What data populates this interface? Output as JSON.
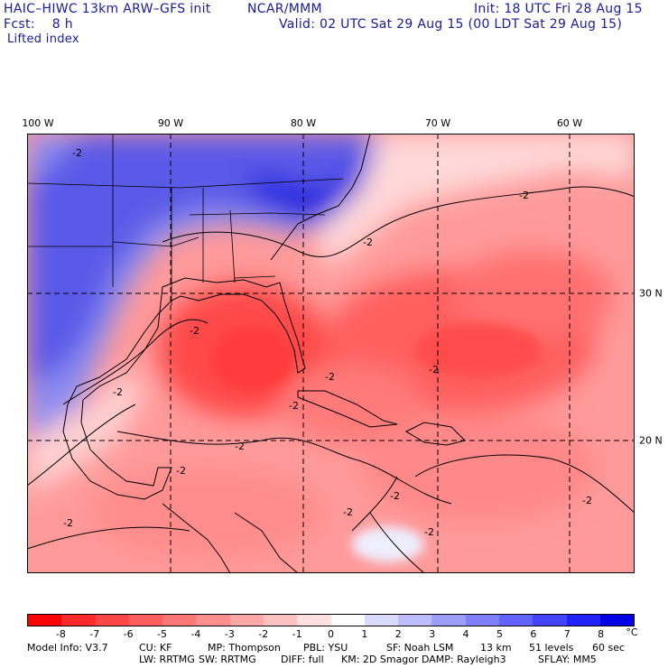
{
  "header": {
    "model": "HAIC–HIWC 13km ARW–GFS init",
    "org": "NCAR/MMM",
    "init": "Init: 18 UTC Fri 28 Aug 15",
    "fcst": "Fcst:    8 h",
    "valid": "Valid: 02 UTC Sat 29 Aug 15 (00 LDT Sat 29 Aug 15)",
    "field": "Lifted index"
  },
  "map": {
    "lon_labels": [
      "100 W",
      "90 W",
      "80 W",
      "70 W",
      "60 W"
    ],
    "lat_labels": [
      "30 N",
      "20 N"
    ],
    "contour_labels": [
      "-2",
      "-2",
      "-2",
      "-2",
      "-2",
      "-2",
      "-2",
      "-2",
      "-2",
      "-2",
      "-2",
      "-2",
      "-2",
      "-2",
      "-2"
    ]
  },
  "scale": {
    "ticks": [
      "-8",
      "-7",
      "-6",
      "-5",
      "-4",
      "-3",
      "-2",
      "-1",
      "0",
      "1",
      "2",
      "3",
      "4",
      "5",
      "6",
      "7",
      "8"
    ],
    "unit": "°C",
    "colors": [
      "#ff0000",
      "#ff2a2a",
      "#ff4646",
      "#ff5e5e",
      "#ff7777",
      "#ff8f8f",
      "#ffa8a8",
      "#ffc2c2",
      "#ffe0e0",
      "#ffffff",
      "#dadaff",
      "#bcbcff",
      "#9e9eff",
      "#8080ff",
      "#6262ff",
      "#4444ff",
      "#2222ff",
      "#0000e6"
    ]
  },
  "footer": {
    "line1": [
      "Model Info: V3.7",
      "CU: KF",
      "MP: Thompson",
      "PBL: YSU",
      "SF: Noah LSM",
      "13 km",
      "51 levels",
      "60 sec"
    ],
    "line2": [
      "LW: RRTMG",
      "SW: RRTMG",
      "DIFF: full",
      "KM: 2D Smagor",
      "DAMP: Rayleigh3",
      "SFLAY: MM5"
    ]
  }
}
